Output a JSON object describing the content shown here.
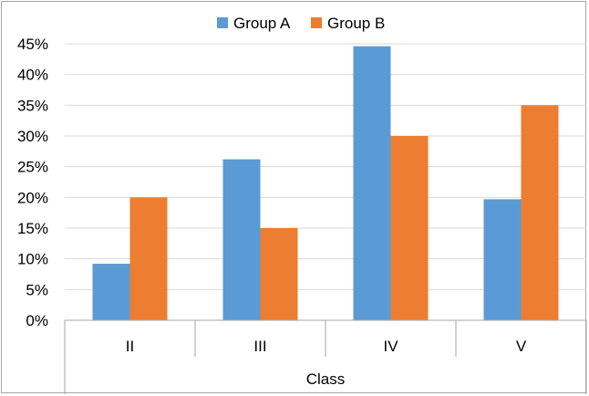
{
  "chart_data": {
    "type": "bar",
    "title": "",
    "xlabel": "Class",
    "ylabel": "",
    "categories": [
      "II",
      "III",
      "IV",
      "V"
    ],
    "series": [
      {
        "name": "Group A",
        "color": "#5b9bd5",
        "values": [
          9.2,
          26.2,
          44.6,
          19.7
        ]
      },
      {
        "name": "Group B",
        "color": "#ed7d31",
        "values": [
          20,
          15,
          30,
          35
        ]
      }
    ],
    "ylim": [
      0,
      45
    ],
    "yticks": [
      0,
      5,
      10,
      15,
      20,
      25,
      30,
      35,
      40,
      45
    ],
    "y_tick_labels": [
      "0%",
      "5%",
      "10%",
      "15%",
      "20%",
      "25%",
      "30%",
      "35%",
      "40%",
      "45%"
    ],
    "grid": true,
    "legend_position": "top-center",
    "gridline_color": "#d9d9d9"
  }
}
